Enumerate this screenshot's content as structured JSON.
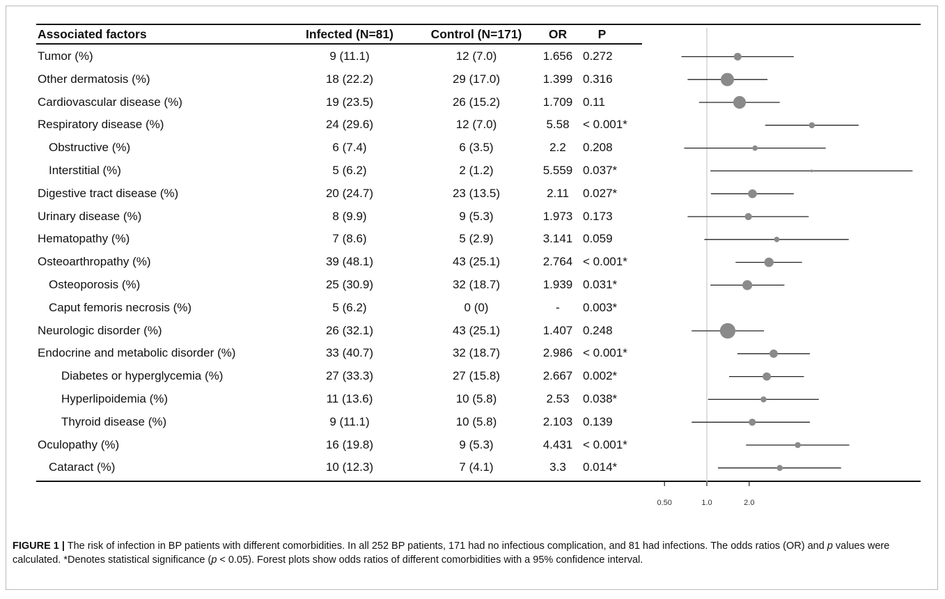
{
  "headers": {
    "factor": "Associated factors",
    "infected": "Infected (N=81)",
    "control": "Control (N=171)",
    "or": "OR",
    "p": "P"
  },
  "chart_data": {
    "type": "table",
    "rows": [
      {
        "factor": "Tumor (%)",
        "indent": 0,
        "infected": "9 (11.1)",
        "control": "12 (7.0)",
        "or": "1.656",
        "p": "0.272",
        "or_value": 1.656,
        "ci": [
          0.66,
          4.15
        ],
        "weight": 0.5
      },
      {
        "factor": "Other dermatosis (%)",
        "indent": 0,
        "infected": "18 (22.2)",
        "control": "29 (17.0)",
        "or": "1.399",
        "p": "0.316",
        "or_value": 1.399,
        "ci": [
          0.73,
          2.7
        ],
        "weight": 1.0
      },
      {
        "factor": "Cardiovascular disease (%)",
        "indent": 0,
        "infected": "19 (23.5)",
        "control": "26 (15.2)",
        "or": "1.709",
        "p": "0.11",
        "or_value": 1.709,
        "ci": [
          0.88,
          3.3
        ],
        "weight": 0.95
      },
      {
        "factor": "Respiratory disease (%)",
        "indent": 0,
        "infected": "24 (29.6)",
        "control": "12 (7.0)",
        "or": "5.58",
        "p": "< 0.001*",
        "or_value": 5.58,
        "ci": [
          2.6,
          12.0
        ],
        "weight": 0.35
      },
      {
        "factor": "Obstructive (%)",
        "indent": 1,
        "infected": "6 (7.4)",
        "control": "6 (3.5)",
        "or": "2.2",
        "p": "0.208",
        "or_value": 2.2,
        "ci": [
          0.69,
          7.0
        ],
        "weight": 0.3
      },
      {
        "factor": "Interstitial  (%)",
        "indent": 1,
        "infected": "5 (6.2)",
        "control": "2 (1.2)",
        "or": "5.559",
        "p": "0.037*",
        "or_value": 5.559,
        "ci": [
          1.06,
          29.0
        ],
        "weight": 0.05
      },
      {
        "factor": "Digestive tract disease (%)",
        "indent": 0,
        "infected": "20 (24.7)",
        "control": "23 (13.5)",
        "or": "2.11",
        "p": "0.027*",
        "or_value": 2.11,
        "ci": [
          1.07,
          4.15
        ],
        "weight": 0.6
      },
      {
        "factor": "Urinary disease (%)",
        "indent": 0,
        "infected": "8 (9.9)",
        "control": "9 (5.3)",
        "or": "1.973",
        "p": "0.173",
        "or_value": 1.973,
        "ci": [
          0.73,
          5.3
        ],
        "weight": 0.45
      },
      {
        "factor": "Hematopathy (%)",
        "indent": 0,
        "infected": "7 (8.6)",
        "control": "5 (2.9)",
        "or": "3.141",
        "p": "0.059",
        "or_value": 3.141,
        "ci": [
          0.96,
          10.2
        ],
        "weight": 0.3
      },
      {
        "factor": "Osteoarthropathy  (%)",
        "indent": 0,
        "infected": "39 (48.1)",
        "control": "43 (25.1)",
        "or": "2.764",
        "p": "< 0.001*",
        "or_value": 2.764,
        "ci": [
          1.6,
          4.75
        ],
        "weight": 0.65
      },
      {
        "factor": "Osteoporosis  (%)",
        "indent": 1,
        "infected": "25 (30.9)",
        "control": "32 (18.7)",
        "or": "1.939",
        "p": "0.031*",
        "or_value": 1.939,
        "ci": [
          1.06,
          3.56
        ],
        "weight": 0.7
      },
      {
        "factor": "Caput femoris necrosis (%)",
        "indent": 1,
        "infected": "5 (6.2)",
        "control": "0 (0)",
        "or": "-",
        "p": "0.003*",
        "or_value": null,
        "ci": null,
        "weight": 0
      },
      {
        "factor": "Neurologic disorder (%)",
        "indent": 0,
        "infected": "26 (32.1)",
        "control": "43 (25.1)",
        "or": "1.407",
        "p": "0.248",
        "or_value": 1.407,
        "ci": [
          0.78,
          2.55
        ],
        "weight": 1.2
      },
      {
        "factor": "Endocrine and metabolic disorder (%)",
        "indent": 0,
        "infected": "33 (40.7)",
        "control": "32 (18.7)",
        "or": "2.986",
        "p": "< 0.001*",
        "or_value": 2.986,
        "ci": [
          1.65,
          5.4
        ],
        "weight": 0.55
      },
      {
        "factor": "Diabetes or hyperglycemia  (%)",
        "indent": 2,
        "infected": "27 (33.3)",
        "control": "27 (15.8)",
        "or": "2.667",
        "p": "0.002*",
        "or_value": 2.667,
        "ci": [
          1.44,
          4.9
        ],
        "weight": 0.55
      },
      {
        "factor": "Hyperlipoidemia  (%)",
        "indent": 2,
        "infected": "11 (13.6)",
        "control": "10 (5.8)",
        "or": "2.53",
        "p": "0.038*",
        "or_value": 2.53,
        "ci": [
          1.02,
          6.25
        ],
        "weight": 0.35
      },
      {
        "factor": "Thyroid disease (%)",
        "indent": 2,
        "infected": "9 (11.1)",
        "control": "10 (5.8)",
        "or": "2.103",
        "p": "0.139",
        "or_value": 2.103,
        "ci": [
          0.78,
          5.4
        ],
        "weight": 0.45
      },
      {
        "factor": "Oculopathy  (%)",
        "indent": 0,
        "infected": "16 (19.8)",
        "control": "9 (5.3)",
        "or": "4.431",
        "p": "< 0.001*",
        "or_value": 4.431,
        "ci": [
          1.9,
          10.3
        ],
        "weight": 0.35
      },
      {
        "factor": "Cataract (%)",
        "indent": 1,
        "infected": "10 (12.3)",
        "control": "7 (4.1)",
        "or": "3.3",
        "p": "0.014*",
        "or_value": 3.3,
        "ci": [
          1.2,
          9.0
        ],
        "weight": 0.35
      }
    ],
    "x_axis": {
      "scale": "log",
      "ticks": [
        0.5,
        1.0,
        2.0
      ],
      "tick_labels": [
        "0.50",
        "1.0",
        "2.0"
      ],
      "reference_line": 1.0,
      "range": [
        0.5,
        29.0
      ]
    }
  },
  "caption": {
    "label": "FIGURE 1 |",
    "text": " The risk of infection in BP patients with different comorbidities. In all 252 BP patients, 171 had no infectious complication, and 81 had infections. The odds ratios (OR) and ",
    "p_italic": "p",
    "text2": " values were calculated. *Denotes statistical significance (",
    "p_italic2": "p",
    "text3": " < 0.05). Forest plots show odds ratios of different comorbidities with a 95% confidence interval."
  }
}
